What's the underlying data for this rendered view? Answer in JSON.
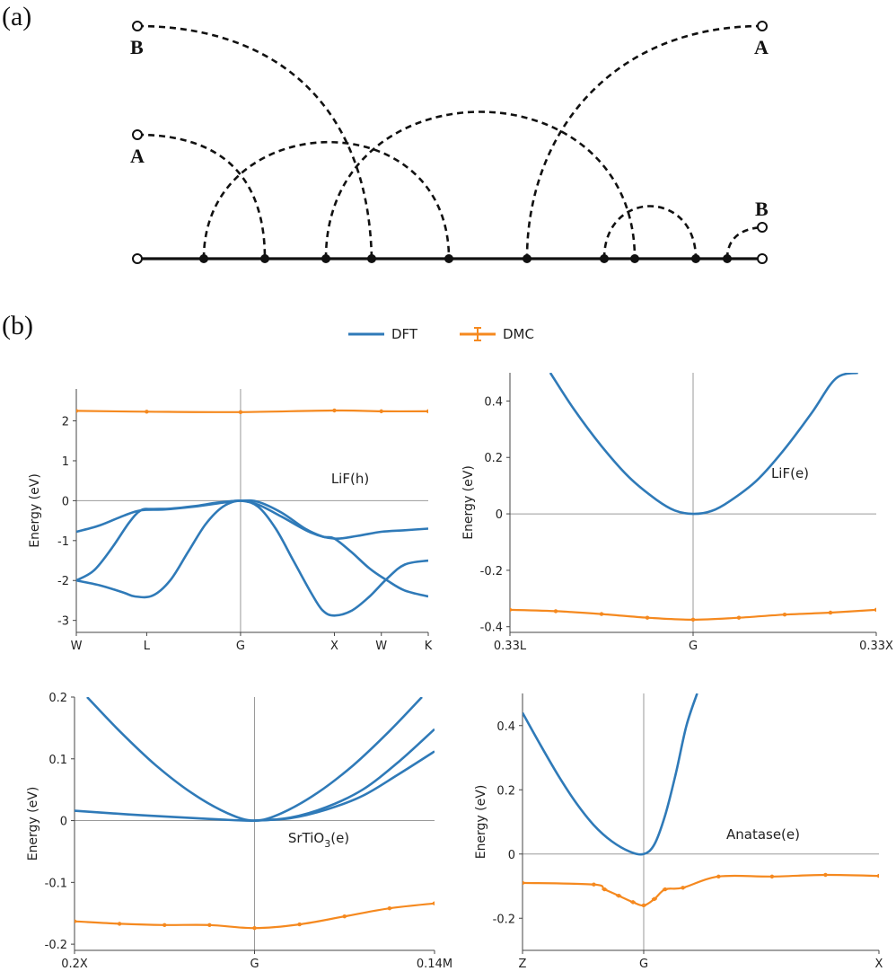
{
  "panel_labels": {
    "a": "(a)",
    "b": "(b)"
  },
  "diagram": {
    "ports": {
      "left_top": "B",
      "left_mid": "A",
      "right_top": "A",
      "right_low": "B"
    }
  },
  "legend": {
    "dft": "DFT",
    "dmc": "DMC"
  },
  "colors": {
    "dft": "#2f7ab8",
    "dmc": "#f5891f",
    "grid": "#9a9a9a"
  },
  "chart_data": [
    {
      "type": "line",
      "id": "lif_h",
      "annotation": "LiF(h)",
      "ylabel": "Energy (eV)",
      "xlim": [
        0,
        6
      ],
      "ylim": [
        -3.3,
        2.8
      ],
      "yticks": [
        2,
        1,
        0,
        -1,
        -2,
        -3
      ],
      "xticks": [
        {
          "x": 0,
          "label": "W"
        },
        {
          "x": 1.2,
          "label": "L"
        },
        {
          "x": 2.8,
          "label": "G"
        },
        {
          "x": 4.4,
          "label": "X"
        },
        {
          "x": 5.2,
          "label": "W"
        },
        {
          "x": 6,
          "label": "K"
        }
      ],
      "vline_at": 2.8,
      "hline_at": 0,
      "dft_series": [
        {
          "x": [
            0,
            0.4,
            0.8,
            1.1,
            1.5,
            2.0,
            2.5,
            2.8,
            3.1,
            3.5,
            4.0,
            4.4,
            4.8,
            5.2,
            5.6,
            6.0
          ],
          "y": [
            -0.78,
            -0.62,
            -0.38,
            -0.24,
            -0.22,
            -0.15,
            -0.05,
            0,
            -0.1,
            -0.4,
            -0.8,
            -0.95,
            -0.88,
            -0.78,
            -0.74,
            -0.7
          ]
        },
        {
          "x": [
            0,
            0.3,
            0.6,
            0.9,
            1.1,
            1.3,
            1.6,
            2.0,
            2.4,
            2.8,
            3.1,
            3.5,
            3.9,
            4.2,
            4.4,
            4.7,
            5.0,
            5.3,
            5.6,
            6.0
          ],
          "y": [
            -2,
            -1.75,
            -1.2,
            -0.55,
            -0.24,
            -0.21,
            -0.2,
            -0.14,
            -0.05,
            0,
            -0.03,
            -0.3,
            -0.7,
            -0.9,
            -0.95,
            -1.3,
            -1.7,
            -2.0,
            -2.25,
            -2.4
          ]
        },
        {
          "x": [
            0,
            0.4,
            0.8,
            1.0,
            1.3,
            1.6,
            1.9,
            2.2,
            2.5,
            2.8,
            3.1,
            3.4,
            3.7,
            4.0,
            4.2,
            4.4,
            4.7,
            5.0,
            5.3,
            5.6,
            6.0
          ],
          "y": [
            -2,
            -2.12,
            -2.3,
            -2.4,
            -2.38,
            -2.0,
            -1.3,
            -0.6,
            -0.15,
            0,
            -0.15,
            -0.7,
            -1.5,
            -2.3,
            -2.75,
            -2.88,
            -2.75,
            -2.4,
            -1.95,
            -1.6,
            -1.5
          ]
        }
      ],
      "dmc": {
        "x": [
          0,
          1.2,
          2.8,
          4.4,
          5.2,
          6.0
        ],
        "y": [
          2.25,
          2.23,
          2.22,
          2.26,
          2.24,
          2.24
        ]
      }
    },
    {
      "type": "line",
      "id": "lif_e",
      "annotation": "LiF(e)",
      "ylabel": "Energy (eV)",
      "xlim": [
        -1,
        1
      ],
      "ylim": [
        -0.42,
        0.5
      ],
      "yticks": [
        0.4,
        0.2,
        0,
        -0.2,
        -0.4
      ],
      "ytick_labels": [
        "0.4",
        "0.2",
        "0",
        "-0.2",
        "-0.4"
      ],
      "xticks": [
        {
          "x": -1,
          "label": "0.33L"
        },
        {
          "x": 0,
          "label": "G"
        },
        {
          "x": 1,
          "label": "0.33X"
        }
      ],
      "vline_at": 0,
      "hline_at": 0,
      "dft_series": [
        {
          "x": [
            -0.78,
            -0.65,
            -0.5,
            -0.35,
            -0.2,
            -0.1,
            0,
            0.1,
            0.2,
            0.35,
            0.5,
            0.65,
            0.78,
            0.9
          ],
          "y": [
            0.5,
            0.37,
            0.24,
            0.13,
            0.05,
            0.012,
            0,
            0.01,
            0.045,
            0.12,
            0.23,
            0.36,
            0.48,
            0.5
          ]
        }
      ],
      "dmc": {
        "x": [
          -1,
          -0.75,
          -0.5,
          -0.25,
          0,
          0.25,
          0.5,
          0.75,
          1
        ],
        "y": [
          -0.34,
          -0.345,
          -0.355,
          -0.368,
          -0.375,
          -0.368,
          -0.357,
          -0.35,
          -0.34
        ]
      }
    },
    {
      "type": "line",
      "id": "srtio3_e",
      "annotation": "SrTiO3(e)",
      "annotation_base": "SrTiO",
      "annotation_sub": "3",
      "annotation_tail": "(e)",
      "ylabel": "Energy (eV)",
      "xlim": [
        -1,
        1
      ],
      "ylim": [
        -0.21,
        0.2
      ],
      "yticks": [
        0.2,
        0.1,
        0,
        -0.1,
        -0.2
      ],
      "ytick_labels": [
        "0.2",
        "0.1",
        "0",
        "-0.1",
        "-0.2"
      ],
      "xticks": [
        {
          "x": -1,
          "label": "0.2X"
        },
        {
          "x": 0,
          "label": "G"
        },
        {
          "x": 1,
          "label": "0.14M"
        }
      ],
      "vline_at": 0,
      "hline_at": 0,
      "dft_series": [
        {
          "x": [
            -0.93,
            -0.75,
            -0.55,
            -0.35,
            -0.15,
            0,
            0.15,
            0.35,
            0.55,
            0.75,
            0.93
          ],
          "y": [
            0.2,
            0.145,
            0.09,
            0.045,
            0.012,
            0,
            0.012,
            0.045,
            0.09,
            0.145,
            0.2
          ]
        },
        {
          "x": [
            -1,
            -0.7,
            -0.4,
            -0.2,
            0,
            0.2,
            0.4,
            0.6,
            0.8,
            1
          ],
          "y": [
            0.016,
            0.01,
            0.005,
            0.002,
            0,
            0.005,
            0.022,
            0.05,
            0.095,
            0.148
          ]
        },
        {
          "x": [
            0,
            0.2,
            0.4,
            0.6,
            0.8,
            1
          ],
          "y": [
            0,
            0.004,
            0.018,
            0.04,
            0.075,
            0.112
          ]
        }
      ],
      "dmc": {
        "x": [
          -1,
          -0.75,
          -0.5,
          -0.25,
          0,
          0.25,
          0.5,
          0.75,
          1
        ],
        "y": [
          -0.163,
          -0.167,
          -0.169,
          -0.169,
          -0.174,
          -0.168,
          -0.155,
          -0.142,
          -0.134
        ]
      }
    },
    {
      "type": "line",
      "id": "anatase_e",
      "annotation": "Anatase(e)",
      "ylabel": "Energy (eV)",
      "xlim": [
        0,
        10
      ],
      "ylim": [
        -0.3,
        0.5
      ],
      "yticks": [
        0.4,
        0.2,
        0,
        -0.2
      ],
      "ytick_labels": [
        "0.4",
        "0.2",
        "0",
        "-0.2"
      ],
      "xticks": [
        {
          "x": 0,
          "label": "Z"
        },
        {
          "x": 3.4,
          "label": "G"
        },
        {
          "x": 10,
          "label": "X"
        }
      ],
      "vline_at": 3.4,
      "hline_at": 0,
      "dft_series": [
        {
          "x": [
            0,
            0.5,
            1.0,
            1.5,
            2.0,
            2.5,
            3.0,
            3.4,
            3.7,
            4.0,
            4.3,
            4.6,
            4.9
          ],
          "y": [
            0.44,
            0.34,
            0.245,
            0.16,
            0.09,
            0.04,
            0.008,
            0,
            0.03,
            0.12,
            0.25,
            0.4,
            0.5
          ]
        }
      ],
      "dmc": {
        "x": [
          0,
          2.0,
          2.3,
          2.7,
          3.1,
          3.4,
          3.7,
          4.0,
          4.5,
          5.5,
          7.0,
          8.5,
          10
        ],
        "y": [
          -0.09,
          -0.095,
          -0.11,
          -0.13,
          -0.15,
          -0.16,
          -0.14,
          -0.11,
          -0.105,
          -0.07,
          -0.07,
          -0.065,
          -0.068
        ]
      }
    }
  ]
}
